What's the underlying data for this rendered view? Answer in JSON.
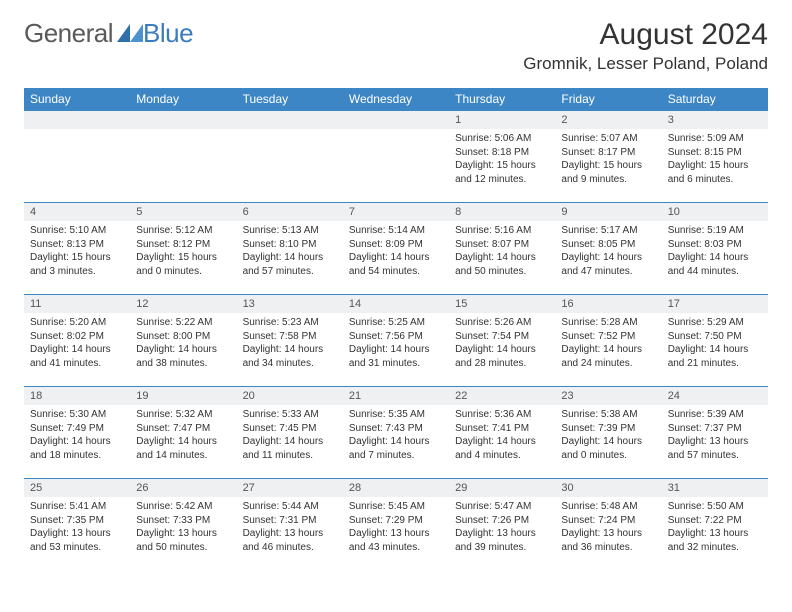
{
  "logo": {
    "general": "General",
    "blue": "Blue"
  },
  "header": {
    "month_title": "August 2024",
    "location": "Gromnik, Lesser Poland, Poland"
  },
  "colors": {
    "header_bg": "#3d86c6",
    "header_text": "#ffffff",
    "daynum_bg": "#eef0f2",
    "border": "#3d86c6",
    "text": "#333333",
    "logo_general": "#5a5a5a",
    "logo_blue": "#3a7cbf",
    "background": "#ffffff"
  },
  "typography": {
    "month_title_fontsize": 30,
    "location_fontsize": 17,
    "weekday_fontsize": 12,
    "daynum_fontsize": 11,
    "content_fontsize": 10,
    "font_family": "Arial"
  },
  "weekdays": [
    "Sunday",
    "Monday",
    "Tuesday",
    "Wednesday",
    "Thursday",
    "Friday",
    "Saturday"
  ],
  "weeks": [
    [
      null,
      null,
      null,
      null,
      {
        "n": "1",
        "sunrise": "Sunrise: 5:06 AM",
        "sunset": "Sunset: 8:18 PM",
        "daylight": "Daylight: 15 hours and 12 minutes."
      },
      {
        "n": "2",
        "sunrise": "Sunrise: 5:07 AM",
        "sunset": "Sunset: 8:17 PM",
        "daylight": "Daylight: 15 hours and 9 minutes."
      },
      {
        "n": "3",
        "sunrise": "Sunrise: 5:09 AM",
        "sunset": "Sunset: 8:15 PM",
        "daylight": "Daylight: 15 hours and 6 minutes."
      }
    ],
    [
      {
        "n": "4",
        "sunrise": "Sunrise: 5:10 AM",
        "sunset": "Sunset: 8:13 PM",
        "daylight": "Daylight: 15 hours and 3 minutes."
      },
      {
        "n": "5",
        "sunrise": "Sunrise: 5:12 AM",
        "sunset": "Sunset: 8:12 PM",
        "daylight": "Daylight: 15 hours and 0 minutes."
      },
      {
        "n": "6",
        "sunrise": "Sunrise: 5:13 AM",
        "sunset": "Sunset: 8:10 PM",
        "daylight": "Daylight: 14 hours and 57 minutes."
      },
      {
        "n": "7",
        "sunrise": "Sunrise: 5:14 AM",
        "sunset": "Sunset: 8:09 PM",
        "daylight": "Daylight: 14 hours and 54 minutes."
      },
      {
        "n": "8",
        "sunrise": "Sunrise: 5:16 AM",
        "sunset": "Sunset: 8:07 PM",
        "daylight": "Daylight: 14 hours and 50 minutes."
      },
      {
        "n": "9",
        "sunrise": "Sunrise: 5:17 AM",
        "sunset": "Sunset: 8:05 PM",
        "daylight": "Daylight: 14 hours and 47 minutes."
      },
      {
        "n": "10",
        "sunrise": "Sunrise: 5:19 AM",
        "sunset": "Sunset: 8:03 PM",
        "daylight": "Daylight: 14 hours and 44 minutes."
      }
    ],
    [
      {
        "n": "11",
        "sunrise": "Sunrise: 5:20 AM",
        "sunset": "Sunset: 8:02 PM",
        "daylight": "Daylight: 14 hours and 41 minutes."
      },
      {
        "n": "12",
        "sunrise": "Sunrise: 5:22 AM",
        "sunset": "Sunset: 8:00 PM",
        "daylight": "Daylight: 14 hours and 38 minutes."
      },
      {
        "n": "13",
        "sunrise": "Sunrise: 5:23 AM",
        "sunset": "Sunset: 7:58 PM",
        "daylight": "Daylight: 14 hours and 34 minutes."
      },
      {
        "n": "14",
        "sunrise": "Sunrise: 5:25 AM",
        "sunset": "Sunset: 7:56 PM",
        "daylight": "Daylight: 14 hours and 31 minutes."
      },
      {
        "n": "15",
        "sunrise": "Sunrise: 5:26 AM",
        "sunset": "Sunset: 7:54 PM",
        "daylight": "Daylight: 14 hours and 28 minutes."
      },
      {
        "n": "16",
        "sunrise": "Sunrise: 5:28 AM",
        "sunset": "Sunset: 7:52 PM",
        "daylight": "Daylight: 14 hours and 24 minutes."
      },
      {
        "n": "17",
        "sunrise": "Sunrise: 5:29 AM",
        "sunset": "Sunset: 7:50 PM",
        "daylight": "Daylight: 14 hours and 21 minutes."
      }
    ],
    [
      {
        "n": "18",
        "sunrise": "Sunrise: 5:30 AM",
        "sunset": "Sunset: 7:49 PM",
        "daylight": "Daylight: 14 hours and 18 minutes."
      },
      {
        "n": "19",
        "sunrise": "Sunrise: 5:32 AM",
        "sunset": "Sunset: 7:47 PM",
        "daylight": "Daylight: 14 hours and 14 minutes."
      },
      {
        "n": "20",
        "sunrise": "Sunrise: 5:33 AM",
        "sunset": "Sunset: 7:45 PM",
        "daylight": "Daylight: 14 hours and 11 minutes."
      },
      {
        "n": "21",
        "sunrise": "Sunrise: 5:35 AM",
        "sunset": "Sunset: 7:43 PM",
        "daylight": "Daylight: 14 hours and 7 minutes."
      },
      {
        "n": "22",
        "sunrise": "Sunrise: 5:36 AM",
        "sunset": "Sunset: 7:41 PM",
        "daylight": "Daylight: 14 hours and 4 minutes."
      },
      {
        "n": "23",
        "sunrise": "Sunrise: 5:38 AM",
        "sunset": "Sunset: 7:39 PM",
        "daylight": "Daylight: 14 hours and 0 minutes."
      },
      {
        "n": "24",
        "sunrise": "Sunrise: 5:39 AM",
        "sunset": "Sunset: 7:37 PM",
        "daylight": "Daylight: 13 hours and 57 minutes."
      }
    ],
    [
      {
        "n": "25",
        "sunrise": "Sunrise: 5:41 AM",
        "sunset": "Sunset: 7:35 PM",
        "daylight": "Daylight: 13 hours and 53 minutes."
      },
      {
        "n": "26",
        "sunrise": "Sunrise: 5:42 AM",
        "sunset": "Sunset: 7:33 PM",
        "daylight": "Daylight: 13 hours and 50 minutes."
      },
      {
        "n": "27",
        "sunrise": "Sunrise: 5:44 AM",
        "sunset": "Sunset: 7:31 PM",
        "daylight": "Daylight: 13 hours and 46 minutes."
      },
      {
        "n": "28",
        "sunrise": "Sunrise: 5:45 AM",
        "sunset": "Sunset: 7:29 PM",
        "daylight": "Daylight: 13 hours and 43 minutes."
      },
      {
        "n": "29",
        "sunrise": "Sunrise: 5:47 AM",
        "sunset": "Sunset: 7:26 PM",
        "daylight": "Daylight: 13 hours and 39 minutes."
      },
      {
        "n": "30",
        "sunrise": "Sunrise: 5:48 AM",
        "sunset": "Sunset: 7:24 PM",
        "daylight": "Daylight: 13 hours and 36 minutes."
      },
      {
        "n": "31",
        "sunrise": "Sunrise: 5:50 AM",
        "sunset": "Sunset: 7:22 PM",
        "daylight": "Daylight: 13 hours and 32 minutes."
      }
    ]
  ]
}
